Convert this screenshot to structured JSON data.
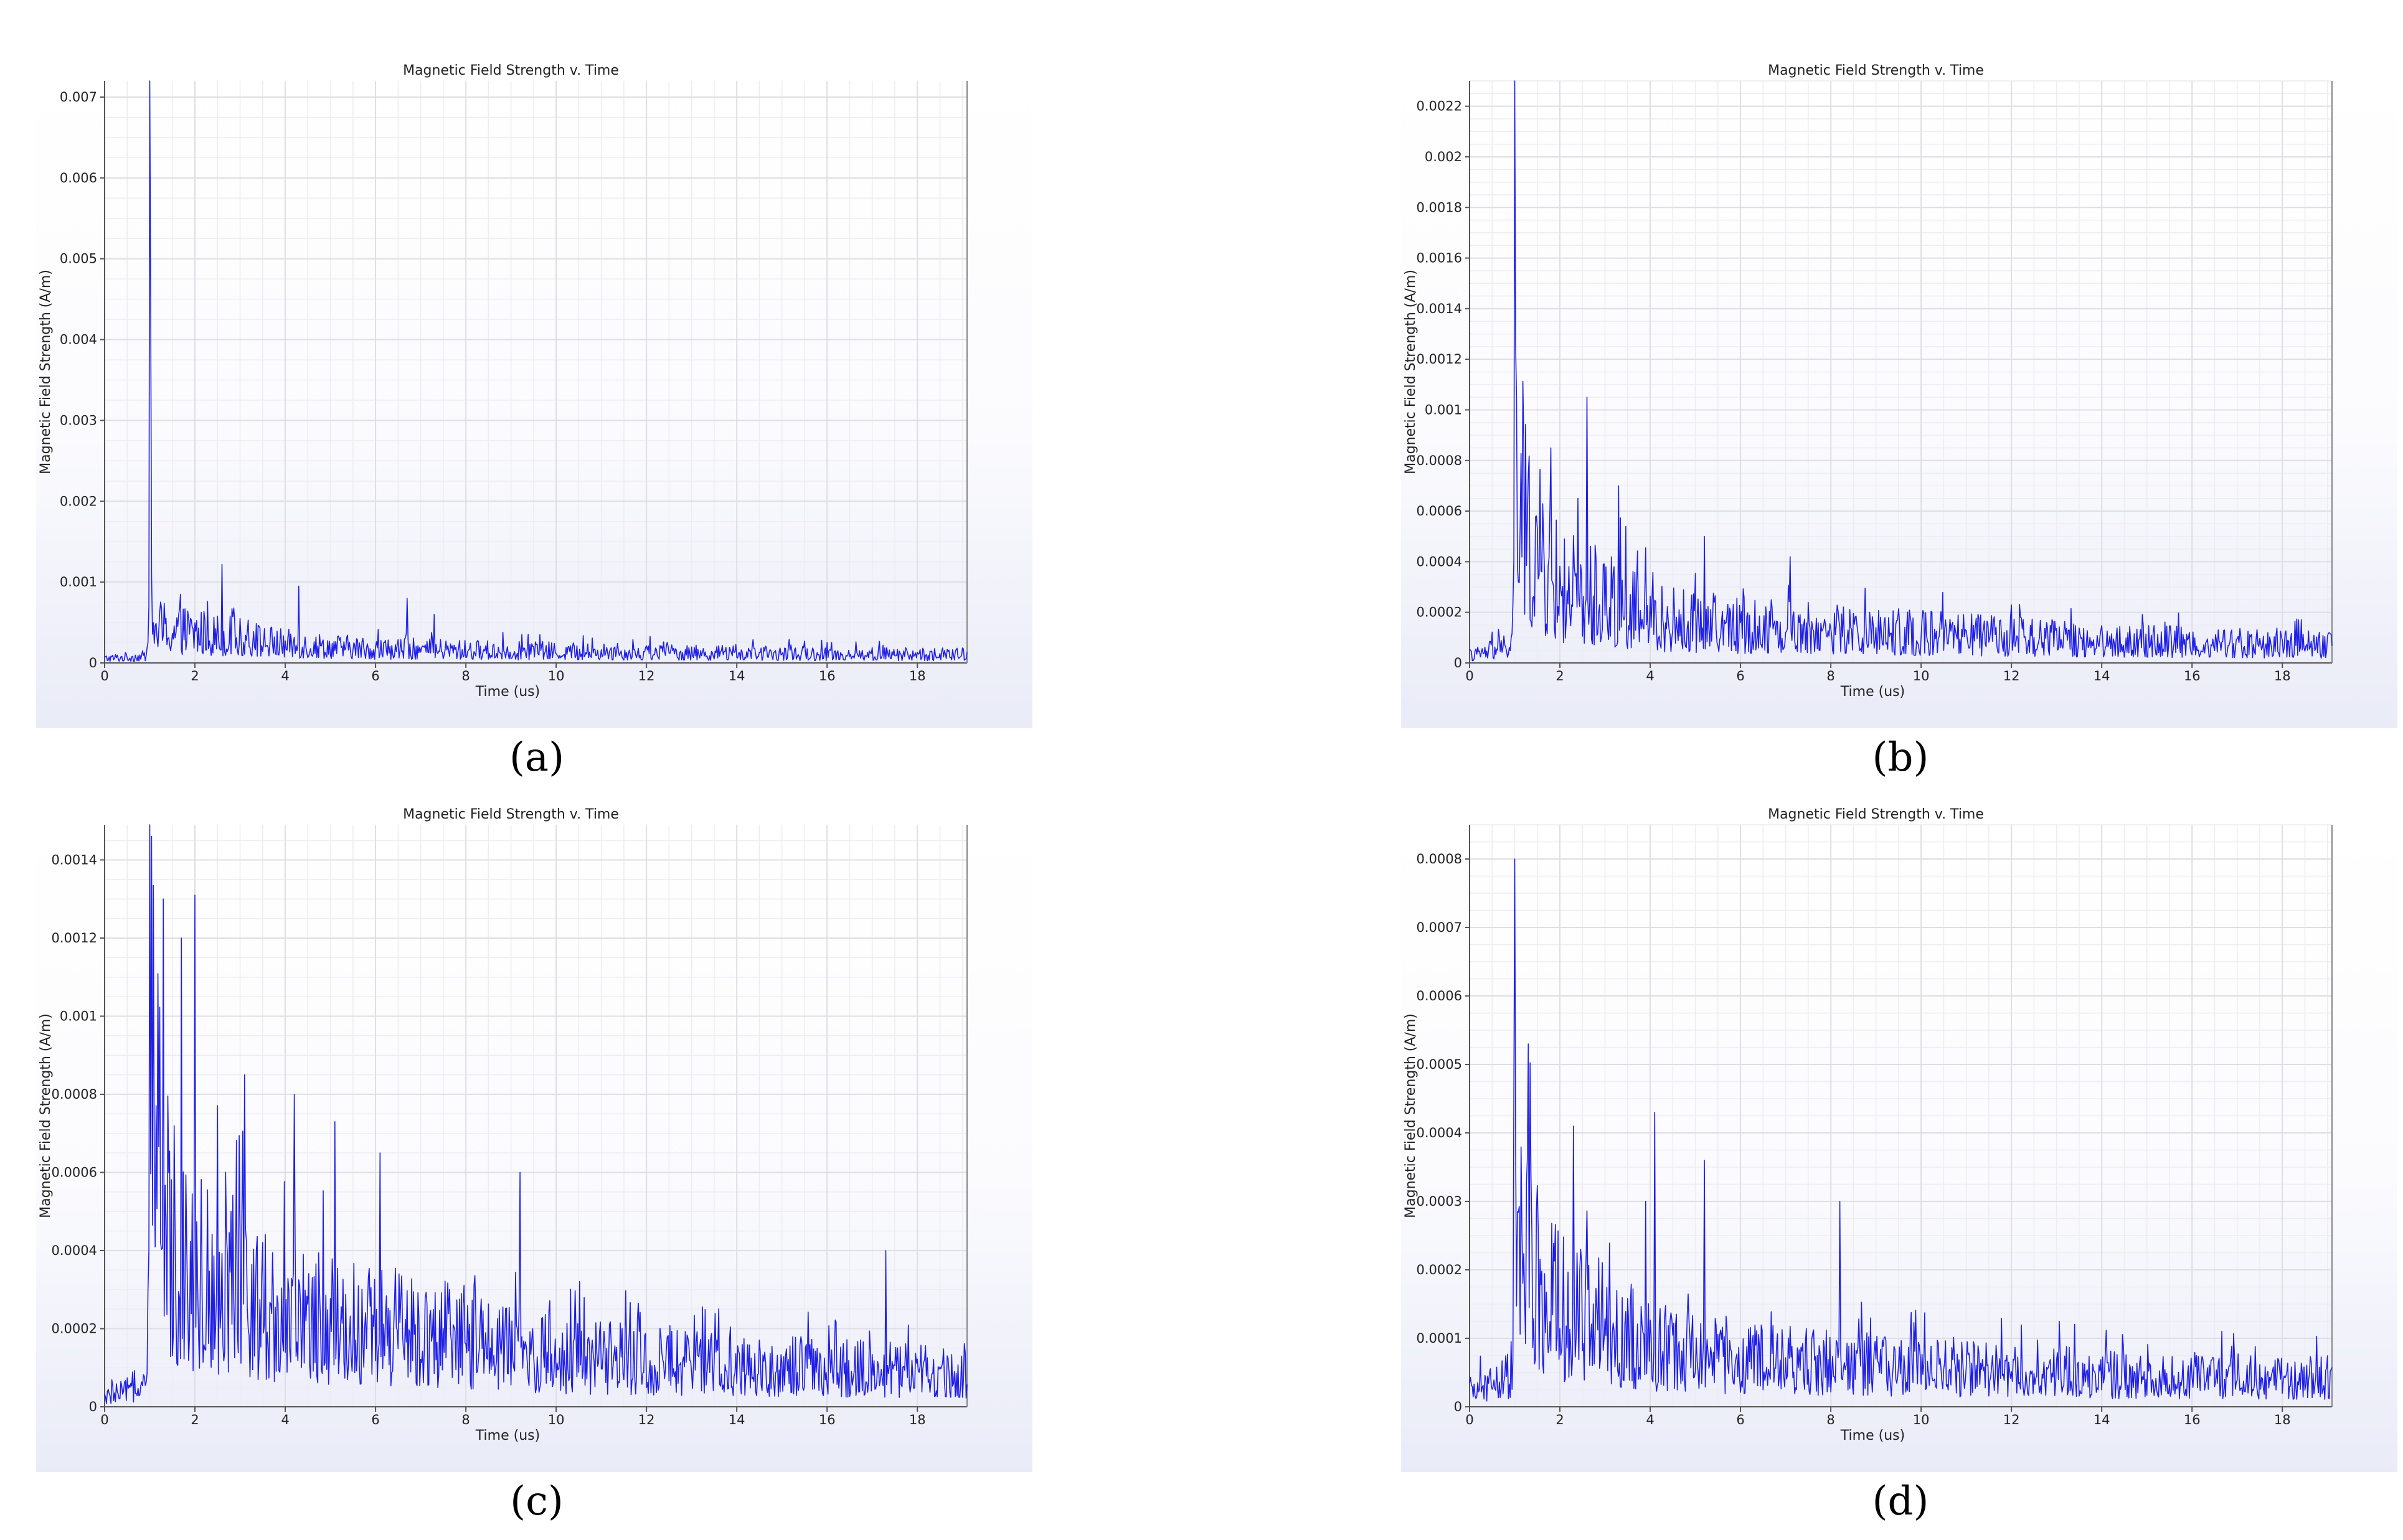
{
  "captions": [
    "(a)",
    "(b)",
    "(c)",
    "(d)"
  ],
  "colors": {
    "series": "#1f1fe8",
    "grid_minor": "#ececf2",
    "grid_major": "#c9c9cf",
    "background_bottom": "#e9ebf7"
  },
  "chart_data": [
    {
      "type": "line",
      "title": "Magnetic Field Strength v. Time",
      "xlabel": "Time (us)",
      "ylabel": "Magnetic Field Strength (A/m)",
      "xlim": [
        0,
        19.1
      ],
      "ylim": [
        0,
        0.0072
      ],
      "xticks": [
        "0",
        "2",
        "4",
        "6",
        "8",
        "10",
        "12",
        "14",
        "16",
        "18"
      ],
      "yticks": [
        "0",
        "0.001",
        "0.002",
        "0.003",
        "0.004",
        "0.005",
        "0.006",
        "0.007"
      ],
      "grid": true,
      "series": [
        {
          "sampling": "1 sample per 0.02 us",
          "envelope": [
            [
              0,
              0.0001
            ],
            [
              0.95,
              0.00015
            ],
            [
              1.0,
              0.0072
            ],
            [
              1.05,
              0.0008
            ],
            [
              1.6,
              0.0007
            ],
            [
              2.5,
              0.0006
            ],
            [
              4,
              0.0004
            ],
            [
              6,
              0.0003
            ],
            [
              10,
              0.00025
            ],
            [
              14,
              0.0002
            ],
            [
              19.1,
              0.00018
            ]
          ],
          "peaks": [
            [
              1.0,
              0.0072
            ],
            [
              1.05,
              0.0011
            ],
            [
              2.6,
              0.00122
            ],
            [
              4.3,
              0.00095
            ],
            [
              6.7,
              0.0008
            ],
            [
              7.3,
              0.0006
            ]
          ]
        }
      ]
    },
    {
      "type": "line",
      "title": "Magnetic Field Strength v. Time",
      "xlabel": "Time (us)",
      "ylabel": "Magnetic Field Strength (A/m)",
      "xlim": [
        0,
        19.1
      ],
      "ylim": [
        0,
        0.0023
      ],
      "xticks": [
        "0",
        "2",
        "4",
        "6",
        "8",
        "10",
        "12",
        "14",
        "16",
        "18"
      ],
      "yticks": [
        "0",
        "0.0002",
        "0.0004",
        "0.0006",
        "0.0008",
        "0.001",
        "0.0012",
        "0.0014",
        "0.0016",
        "0.0018",
        "0.002",
        "0.0022"
      ],
      "grid": true,
      "series": [
        {
          "sampling": "1 sample per 0.02 us",
          "envelope": [
            [
              0,
              5e-05
            ],
            [
              0.95,
              0.00012
            ],
            [
              1.0,
              0.0023
            ],
            [
              1.05,
              0.001
            ],
            [
              2.0,
              0.0005
            ],
            [
              3,
              0.00045
            ],
            [
              4,
              0.0003
            ],
            [
              6,
              0.00025
            ],
            [
              10,
              0.0002
            ],
            [
              14,
              0.00015
            ],
            [
              19.1,
              0.00012
            ]
          ],
          "peaks": [
            [
              1.0,
              0.0023
            ],
            [
              1.05,
              0.00105
            ],
            [
              2.6,
              0.00105
            ],
            [
              1.8,
              0.00085
            ],
            [
              3.3,
              0.0007
            ],
            [
              5.2,
              0.0005
            ],
            [
              7.1,
              0.00042
            ]
          ]
        }
      ]
    },
    {
      "type": "line",
      "title": "Magnetic Field Strength v. Time",
      "xlabel": "Time (us)",
      "ylabel": "Magnetic Field Strength (A/m)",
      "xlim": [
        0,
        19.1
      ],
      "ylim": [
        0,
        0.00149
      ],
      "xticks": [
        "0",
        "2",
        "4",
        "6",
        "8",
        "10",
        "12",
        "14",
        "16",
        "18"
      ],
      "yticks": [
        "0",
        "0.0002",
        "0.0004",
        "0.0006",
        "0.0008",
        "0.001",
        "0.0012",
        "0.0014"
      ],
      "grid": true,
      "series": [
        {
          "sampling": "1 sample per 0.02 us",
          "envelope": [
            [
              0,
              4e-05
            ],
            [
              0.95,
              0.0001
            ],
            [
              1.0,
              0.00149
            ],
            [
              1.3,
              0.0008
            ],
            [
              2.0,
              0.0006
            ],
            [
              3,
              0.0005
            ],
            [
              4,
              0.0004
            ],
            [
              6,
              0.00035
            ],
            [
              8,
              0.0003
            ],
            [
              10,
              0.00022
            ],
            [
              14,
              0.00018
            ],
            [
              19.1,
              0.00015
            ]
          ],
          "peaks": [
            [
              1.0,
              0.00149
            ],
            [
              1.3,
              0.0013
            ],
            [
              1.7,
              0.0012
            ],
            [
              2.0,
              0.00131
            ],
            [
              3.1,
              0.00085
            ],
            [
              4.2,
              0.0008
            ],
            [
              5.1,
              0.00073
            ],
            [
              6.1,
              0.00065
            ],
            [
              9.2,
              0.0006
            ],
            [
              17.3,
              0.0004
            ]
          ]
        }
      ]
    },
    {
      "type": "line",
      "title": "Magnetic Field Strength v. Time",
      "xlabel": "Time (us)",
      "ylabel": "Magnetic Field Strength (A/m)",
      "xlim": [
        0,
        19.1
      ],
      "ylim": [
        0,
        0.00085
      ],
      "xticks": [
        "0",
        "2",
        "4",
        "6",
        "8",
        "10",
        "12",
        "14",
        "16",
        "18"
      ],
      "yticks": [
        "0",
        "0.0001",
        "0.0002",
        "0.0003",
        "0.0004",
        "0.0005",
        "0.0006",
        "0.0007",
        "0.0008"
      ],
      "grid": true,
      "series": [
        {
          "sampling": "1 sample per 0.02 us",
          "envelope": [
            [
              0,
              4e-05
            ],
            [
              0.95,
              8e-05
            ],
            [
              1.0,
              0.0008
            ],
            [
              1.05,
              0.0004
            ],
            [
              2.0,
              0.00025
            ],
            [
              3,
              0.0002
            ],
            [
              4,
              0.00015
            ],
            [
              6,
              0.00012
            ],
            [
              10,
              0.0001
            ],
            [
              14,
              8e-05
            ],
            [
              19.1,
              7e-05
            ]
          ],
          "peaks": [
            [
              1.0,
              0.0008
            ],
            [
              1.3,
              0.00053
            ],
            [
              2.3,
              0.00041
            ],
            [
              4.1,
              0.00043
            ],
            [
              5.2,
              0.00036
            ],
            [
              8.2,
              0.0003
            ],
            [
              3.9,
              0.0003
            ]
          ]
        }
      ]
    }
  ]
}
